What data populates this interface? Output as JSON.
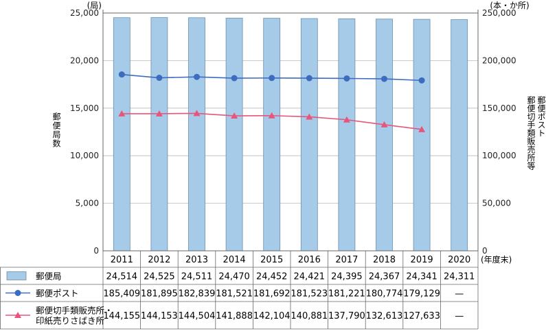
{
  "chart_data": {
    "type": "bar+line",
    "categories": [
      "2011",
      "2012",
      "2013",
      "2014",
      "2015",
      "2016",
      "2017",
      "2018",
      "2019",
      "2020"
    ],
    "x_unit": "(年度末)",
    "left_axis": {
      "label": "郵便局数",
      "unit": "(局)",
      "range": [
        0,
        25000
      ],
      "ticks": [
        "0",
        "5,000",
        "10,000",
        "15,000",
        "20,000",
        "25,000"
      ]
    },
    "right_axis": {
      "label": "郵便ポスト\n郵便切手類販売所等",
      "unit": "(本・か所)",
      "range": [
        0,
        250000
      ],
      "ticks": [
        "0",
        "50,000",
        "100,000",
        "150,000",
        "200,000",
        "250,000"
      ]
    },
    "series": [
      {
        "name": "郵便局",
        "kind": "bar",
        "axis": "left",
        "color": "#a6cbe8",
        "values": [
          24514,
          24525,
          24511,
          24470,
          24452,
          24421,
          24395,
          24367,
          24341,
          24311
        ],
        "labels": [
          "24,514",
          "24,525",
          "24,511",
          "24,470",
          "24,452",
          "24,421",
          "24,395",
          "24,367",
          "24,341",
          "24,311"
        ]
      },
      {
        "name": "郵便ポスト",
        "kind": "line",
        "marker": "circle",
        "axis": "right",
        "color": "#3c6bbf",
        "values": [
          185409,
          181895,
          182839,
          181521,
          181692,
          181523,
          181221,
          180774,
          179129,
          null
        ],
        "labels": [
          "185,409",
          "181,895",
          "182,839",
          "181,521",
          "181,692",
          "181,523",
          "181,221",
          "180,774",
          "179,129",
          "—"
        ]
      },
      {
        "name": "郵便切手類販売所・\n印紙売りさばき所",
        "kind": "line",
        "marker": "triangle",
        "axis": "right",
        "color": "#e8557a",
        "values": [
          144155,
          144153,
          144504,
          141888,
          142104,
          140881,
          137790,
          132613,
          127633,
          null
        ],
        "labels": [
          "144,155",
          "144,153",
          "144,504",
          "141,888",
          "142,104",
          "140,881",
          "137,790",
          "132,613",
          "127,633",
          "—"
        ]
      }
    ],
    "grid": true,
    "legend": "table-below"
  }
}
